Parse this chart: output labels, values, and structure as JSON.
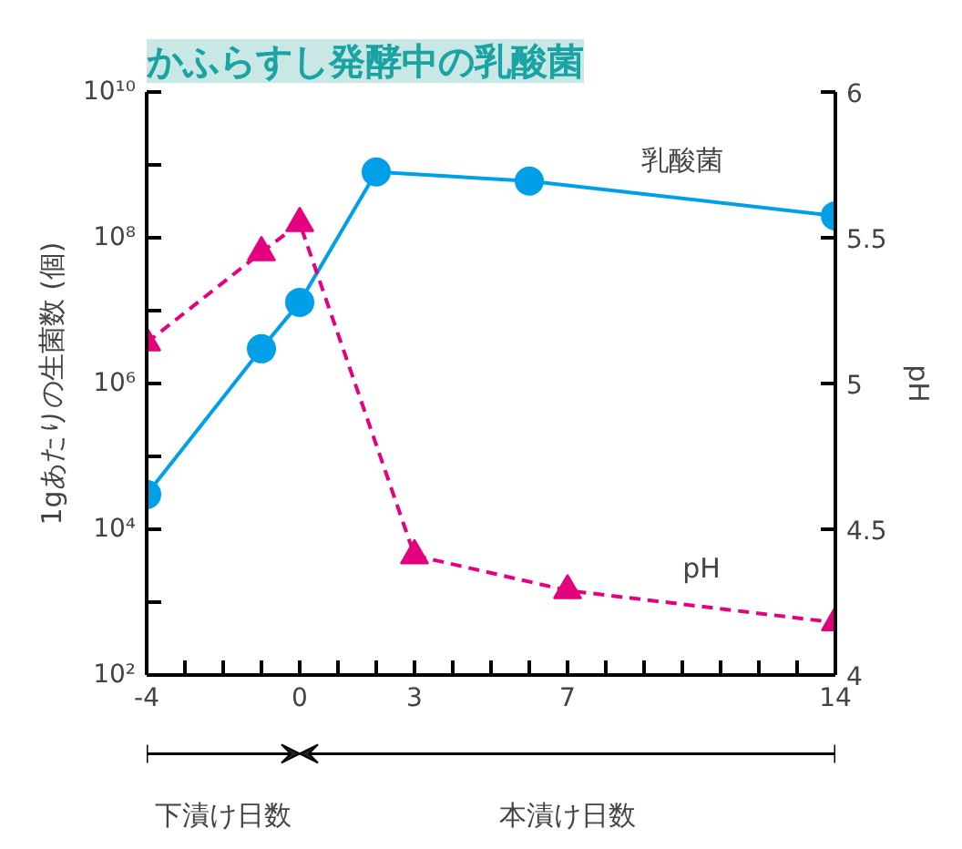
{
  "chart_data": {
    "type": "line",
    "title": "かふらすし発酵中の乳酸菌",
    "ylabel": "1gあたりの生菌数 (個)",
    "y2label": "pH",
    "annotations": [
      "下漬け日数",
      "本漬け日数"
    ],
    "x": [
      -4,
      -1,
      0,
      2,
      6,
      14
    ],
    "xlim": [
      -4,
      14
    ],
    "xticks": [
      {
        "value": -4,
        "label": "-4"
      },
      {
        "value": -3,
        "label": null
      },
      {
        "value": -2,
        "label": null
      },
      {
        "value": -1,
        "label": null
      },
      {
        "value": 0,
        "label": "0"
      },
      {
        "value": 1,
        "label": null
      },
      {
        "value": 2,
        "label": null
      },
      {
        "value": 3,
        "label": "3"
      },
      {
        "value": 4,
        "label": null
      },
      {
        "value": 5,
        "label": null
      },
      {
        "value": 6,
        "label": null
      },
      {
        "value": 7,
        "label": "7"
      },
      {
        "value": 8,
        "label": null
      },
      {
        "value": 9,
        "label": null
      },
      {
        "value": 10,
        "label": null
      },
      {
        "value": 11,
        "label": null
      },
      {
        "value": 12,
        "label": null
      },
      {
        "value": 13,
        "label": null
      },
      {
        "value": 14,
        "label": "14"
      }
    ],
    "log": "y",
    "ylim": [
      100,
      10000000000
    ],
    "yticks": [
      {
        "value": 100,
        "label": "10²"
      },
      {
        "value": 1000,
        "label": null
      },
      {
        "value": 10000,
        "label": "10⁴"
      },
      {
        "value": 100000,
        "label": null
      },
      {
        "value": 1000000,
        "label": "10⁶"
      },
      {
        "value": 10000000,
        "label": null
      },
      {
        "value": 100000000,
        "label": "10⁸"
      },
      {
        "value": 1000000000,
        "label": null
      },
      {
        "value": 10000000000,
        "label": "10¹⁰"
      }
    ],
    "y2lim": [
      4,
      6
    ],
    "y2ticks": [
      4,
      4.5,
      5,
      5.5,
      6
    ],
    "grid": false,
    "series": [
      {
        "name": "乳酸菌",
        "color": "#00a0e9",
        "marker": "circle",
        "line_style": "solid",
        "values": [
          30000,
          3000000,
          13000000,
          800000000,
          600000000,
          200000000
        ]
      },
      {
        "name": "pH",
        "color": "#e4007f",
        "marker": "triangle",
        "line_style": "dashed",
        "axis": "y2",
        "x": [
          -4,
          -1,
          0,
          3,
          7,
          14
        ],
        "values": [
          5.14,
          5.45,
          5.55,
          4.41,
          4.29,
          4.18
        ]
      }
    ]
  }
}
